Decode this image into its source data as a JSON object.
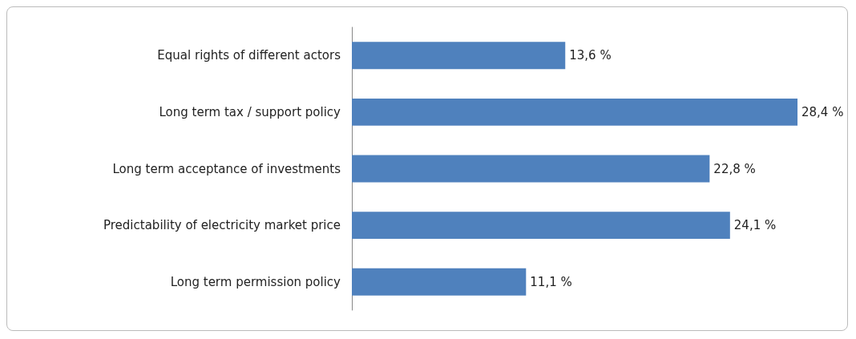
{
  "chart_data": {
    "type": "bar",
    "orientation": "horizontal",
    "categories": [
      "Equal rights of different actors",
      "Long term tax / support policy",
      "Long term acceptance of investments",
      "Predictability of electricity market price",
      "Long term permission policy"
    ],
    "values": [
      13.6,
      28.4,
      22.8,
      24.1,
      11.1
    ],
    "value_labels": [
      "13,6 %",
      "28,4 %",
      "22,8 %",
      "24,1 %",
      "11,1 %"
    ],
    "color": "#4f81bd"
  }
}
